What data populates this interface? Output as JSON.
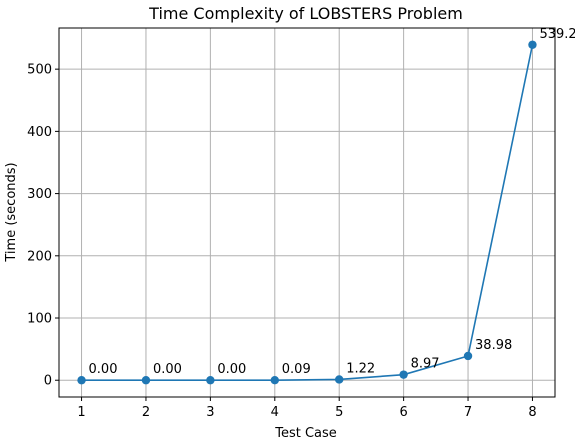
{
  "chart_data": {
    "type": "line",
    "title": "Time Complexity of LOBSTERS Problem",
    "xlabel": "Test Case",
    "ylabel": "Time (seconds)",
    "x": [
      1,
      2,
      3,
      4,
      5,
      6,
      7,
      8
    ],
    "y": [
      0.0,
      0.0,
      0.0,
      0.09,
      1.22,
      8.97,
      38.98,
      539.2
    ],
    "point_labels": [
      "0.00",
      "0.00",
      "0.00",
      "0.09",
      "1.22",
      "8.97",
      "38.98",
      "539.2"
    ],
    "xticks": [
      1,
      2,
      3,
      4,
      5,
      6,
      7,
      8
    ],
    "yticks": [
      0,
      100,
      200,
      300,
      400,
      500
    ],
    "xlim": [
      0.65,
      8.35
    ],
    "ylim": [
      -26.96,
      566.16
    ],
    "grid": true,
    "series_color": "#1f77b4",
    "grid_color": "#b0b0b0"
  }
}
